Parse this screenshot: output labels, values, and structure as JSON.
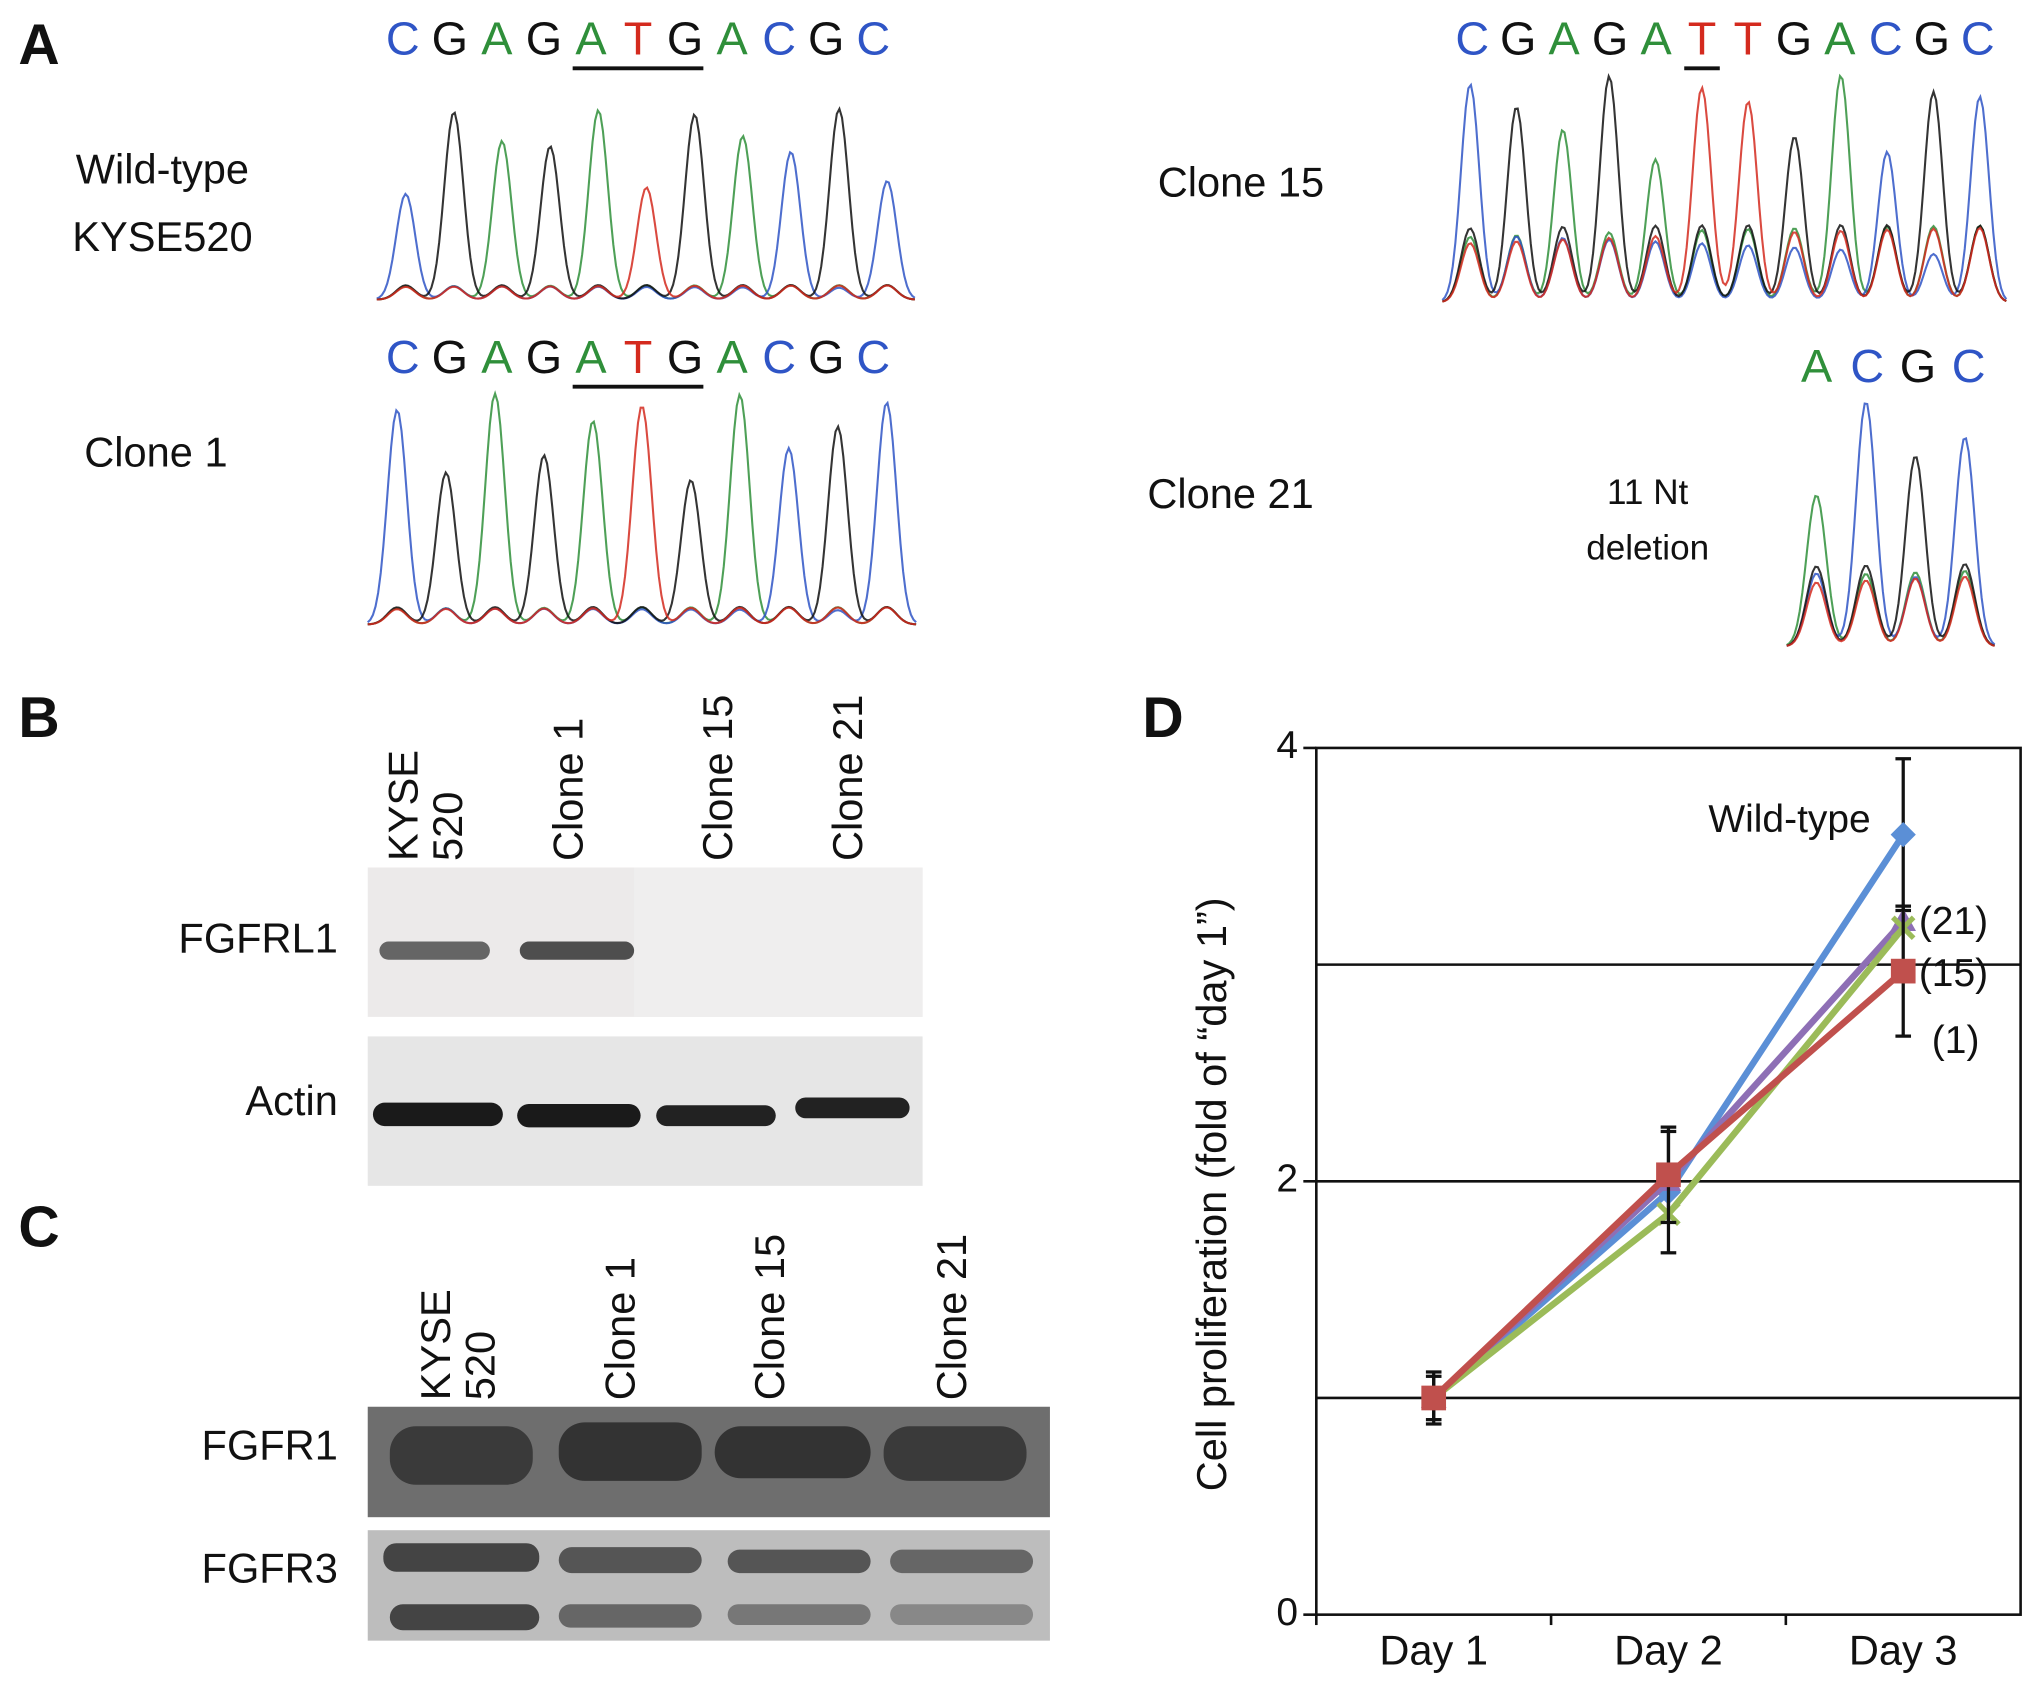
{
  "panel_labels": [
    "A",
    "B",
    "C",
    "D"
  ],
  "base_colors": {
    "A": "#2f8f3a",
    "C": "#2f55c6",
    "G": "#111111",
    "T": "#d42a1e"
  },
  "panel_a": {
    "tracks": [
      {
        "label": [
          "Wild-type",
          "KYSE520"
        ],
        "bases": [
          "C",
          "G",
          "A",
          "G",
          "A",
          "T",
          "G",
          "A",
          "C",
          "G",
          "C"
        ],
        "underline": [
          4,
          6
        ]
      },
      {
        "label": [
          "Clone 1"
        ],
        "bases": [
          "C",
          "G",
          "A",
          "G",
          "A",
          "T",
          "G",
          "A",
          "C",
          "G",
          "C"
        ],
        "underline": [
          4,
          6
        ]
      },
      {
        "label": [
          "Clone 15"
        ],
        "bases": [
          "C",
          "G",
          "A",
          "G",
          "A",
          "T",
          "T",
          "G",
          "A",
          "C",
          "G",
          "C"
        ],
        "underline": [
          5,
          5
        ]
      },
      {
        "label": [
          "Clone 21"
        ],
        "bases": [
          "A",
          "C",
          "G",
          "C"
        ],
        "note": [
          "11 Nt",
          "deletion"
        ]
      }
    ]
  },
  "panel_b": {
    "lanes": [
      [
        "KYSE",
        "520"
      ],
      [
        "Clone 1"
      ],
      [
        "Clone 15"
      ],
      [
        "Clone 21"
      ]
    ],
    "rows": [
      "FGFRL1",
      "Actin"
    ]
  },
  "panel_c": {
    "lanes": [
      [
        "KYSE",
        "520"
      ],
      [
        "Clone 1"
      ],
      [
        "Clone 15"
      ],
      [
        "Clone 21"
      ]
    ],
    "rows": [
      "FGFR1",
      "FGFR3"
    ]
  },
  "chart_data": {
    "type": "line",
    "ylabel": "Cell proliferation (fold of “day 1”)",
    "categories": [
      "Day 1",
      "Day 2",
      "Day 3"
    ],
    "ylim": [
      0,
      4
    ],
    "yticks": [
      0,
      2,
      4
    ],
    "ygrid": [
      1,
      2,
      3
    ],
    "series": [
      {
        "name": "Wild-type",
        "color": "#5b8fd6",
        "marker": "diamond",
        "values": [
          1,
          1.95,
          3.6
        ],
        "errors": [
          0.1,
          0.28,
          0.35
        ]
      },
      {
        "name": "(15)",
        "color": "#8e6fb5",
        "marker": "triangle",
        "values": [
          1,
          2.0,
          3.2
        ]
      },
      {
        "name": "(21)",
        "color": "#9bbb59",
        "marker": "cross",
        "values": [
          1,
          1.85,
          3.17
        ]
      },
      {
        "name": "(1)",
        "color": "#c0504d",
        "marker": "square",
        "values": [
          1,
          2.03,
          2.97
        ],
        "errors": [
          0.12,
          0.22,
          0.3
        ]
      }
    ]
  }
}
